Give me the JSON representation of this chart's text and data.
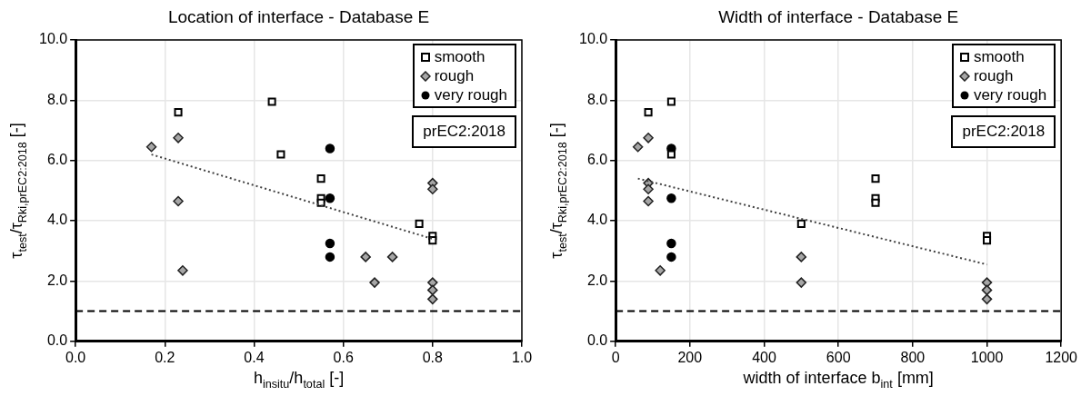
{
  "chart_data": [
    {
      "type": "scatter",
      "title": "Location of interface - Database E",
      "xlabel": "h$_{insitu}$/h$_{total}$ [-]",
      "ylabel": "τ$_{test}$/τ$_{Rki,prEC2:2018}$ [-]",
      "xlim": [
        0,
        1
      ],
      "xticks": [
        {
          "value": 0,
          "label": "0.0"
        },
        {
          "value": 0.2,
          "label": "0.2"
        },
        {
          "value": 0.4,
          "label": "0.4"
        },
        {
          "value": 0.6,
          "label": "0.6"
        },
        {
          "value": 0.8,
          "label": "0.8"
        },
        {
          "value": 1,
          "label": "1.0"
        }
      ],
      "ylim": [
        0,
        10
      ],
      "yticks": [
        {
          "value": 0,
          "label": "0.0"
        },
        {
          "value": 2,
          "label": "2.0"
        },
        {
          "value": 4,
          "label": "4.0"
        },
        {
          "value": 6,
          "label": "6.0"
        },
        {
          "value": 8,
          "label": "8.0"
        },
        {
          "value": 10,
          "label": "10.0"
        }
      ],
      "grid": true,
      "legend": "top right",
      "annotations": [
        "prEC2:2018"
      ],
      "ref_lines": [
        {
          "axis": "y",
          "value": 1,
          "color": "#000000",
          "line_style": "dashed"
        }
      ],
      "series": [
        {
          "name": "smooth",
          "marker": "square",
          "color": "#000000",
          "x": [
            0.23,
            0.44,
            0.46,
            0.55,
            0.55,
            0.55,
            0.77,
            0.8,
            0.8
          ],
          "values": [
            7.6,
            7.95,
            6.2,
            5.4,
            4.75,
            4.6,
            3.9,
            3.5,
            3.35
          ]
        },
        {
          "name": "rough",
          "marker": "diamond",
          "color": "#a6a6a6",
          "x": [
            0.17,
            0.23,
            0.23,
            0.24,
            0.65,
            0.67,
            0.71,
            0.8,
            0.8,
            0.8,
            0.8,
            0.8
          ],
          "values": [
            6.45,
            6.75,
            4.65,
            2.35,
            2.8,
            1.95,
            2.8,
            5.25,
            5.05,
            1.95,
            1.7,
            1.4
          ]
        },
        {
          "name": "very rough",
          "marker": "circle",
          "color": "#000000",
          "x": [
            0.57,
            0.57,
            0.57,
            0.57
          ],
          "values": [
            6.4,
            4.75,
            3.25,
            2.8
          ]
        },
        {
          "type": "line",
          "marker": "none",
          "line_style": "dotted",
          "color": "#404040",
          "x": [
            0.17,
            0.8
          ],
          "values": [
            6.2,
            3.4
          ]
        }
      ]
    },
    {
      "type": "scatter",
      "title": "Width of interface - Database E",
      "xlabel": "width of interface b$_{int}$ [mm]",
      "ylabel": "τ$_{test}$/τ$_{Rki,prEC2:2018}$ [-]",
      "xlim": [
        0,
        1200
      ],
      "xticks": [
        0,
        200,
        400,
        600,
        800,
        1000,
        1200
      ],
      "ylim": [
        0,
        10
      ],
      "yticks": [
        {
          "value": 0,
          "label": "0.0"
        },
        {
          "value": 2,
          "label": "2.0"
        },
        {
          "value": 4,
          "label": "4.0"
        },
        {
          "value": 6,
          "label": "6.0"
        },
        {
          "value": 8,
          "label": "8.0"
        },
        {
          "value": 10,
          "label": "10.0"
        }
      ],
      "grid": true,
      "legend": "top right",
      "annotations": [
        "prEC2:2018"
      ],
      "ref_lines": [
        {
          "axis": "y",
          "value": 1,
          "color": "#000000",
          "line_style": "dashed"
        }
      ],
      "series": [
        {
          "name": "smooth",
          "marker": "square",
          "color": "#000000",
          "x": [
            88,
            150,
            150,
            700,
            700,
            700,
            500,
            1000,
            1000
          ],
          "values": [
            7.6,
            7.95,
            6.2,
            5.4,
            4.75,
            4.6,
            3.9,
            3.5,
            3.35
          ]
        },
        {
          "name": "rough",
          "marker": "diamond",
          "color": "#a6a6a6",
          "x": [
            60,
            88,
            88,
            88,
            88,
            120,
            500,
            500,
            1000,
            1000,
            1000
          ],
          "values": [
            6.45,
            6.75,
            5.25,
            5.05,
            4.65,
            2.35,
            2.8,
            1.95,
            1.95,
            1.7,
            1.4
          ]
        },
        {
          "name": "very rough",
          "marker": "circle",
          "color": "#000000",
          "x": [
            150,
            150,
            150,
            150
          ],
          "values": [
            6.4,
            4.75,
            3.25,
            2.8
          ]
        },
        {
          "type": "line",
          "marker": "none",
          "line_style": "dotted",
          "color": "#404040",
          "x": [
            60,
            1000
          ],
          "values": [
            5.4,
            2.55
          ]
        }
      ]
    }
  ]
}
